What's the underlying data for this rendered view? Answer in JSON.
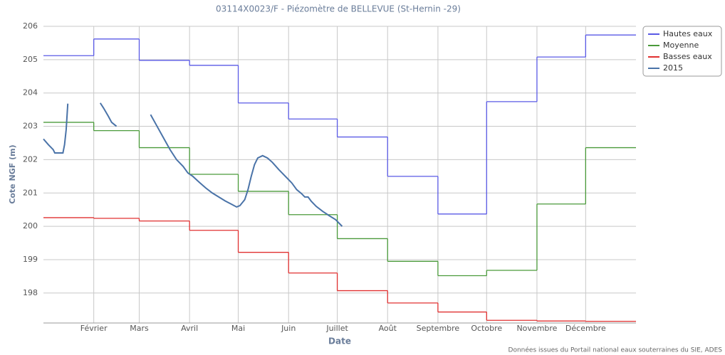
{
  "chart_data": {
    "type": "line",
    "title": "03114X0023/F - Piézomètre de BELLEVUE (St-Hernin -29)",
    "xlabel": "Date",
    "ylabel": "Cote NGF (m)",
    "credits": "Données issues du Portail national eaux souterraines du SIE, ADES",
    "xlim": [
      0,
      365
    ],
    "xticks": [
      {
        "value": 31,
        "label": "Février"
      },
      {
        "value": 59,
        "label": "Mars"
      },
      {
        "value": 90,
        "label": "Avril"
      },
      {
        "value": 120,
        "label": "Mai"
      },
      {
        "value": 151,
        "label": "Juin"
      },
      {
        "value": 181,
        "label": "Juillet"
      },
      {
        "value": 212,
        "label": "Août"
      },
      {
        "value": 243,
        "label": "Septembre"
      },
      {
        "value": 273,
        "label": "Octobre"
      },
      {
        "value": 304,
        "label": "Novembre"
      },
      {
        "value": 334,
        "label": "Décembre"
      }
    ],
    "ylim": [
      197.1,
      206
    ],
    "yticks": [
      198,
      199,
      200,
      201,
      202,
      203,
      204,
      205,
      206
    ],
    "grid": true,
    "legend": "top-right",
    "step_series": [
      {
        "name": "Hautes eaux",
        "color": "#5a5ae6",
        "values": [
          205.12,
          205.62,
          204.98,
          204.83,
          203.7,
          203.22,
          202.68,
          201.5,
          200.37,
          203.74,
          205.08,
          205.74
        ]
      },
      {
        "name": "Moyenne",
        "color": "#4a9a3a",
        "values": [
          203.12,
          202.87,
          202.36,
          201.56,
          201.05,
          200.35,
          199.63,
          198.95,
          198.52,
          198.68,
          200.67,
          202.36
        ]
      },
      {
        "name": "Basses eaux",
        "color": "#e03030",
        "values": [
          200.26,
          200.24,
          200.16,
          199.88,
          199.22,
          198.6,
          198.07,
          197.7,
          197.43,
          197.18,
          197.16,
          197.15
        ]
      }
    ],
    "series": [
      {
        "name": "2015",
        "color": "#4a73a8",
        "x": [
          0,
          3,
          6,
          7,
          12,
          13,
          14,
          15,
          null,
          35,
          37,
          40,
          42,
          45,
          null,
          66,
          70,
          74,
          78,
          82,
          86,
          89,
          92,
          96,
          100,
          104,
          108,
          112,
          116,
          119,
          121,
          124,
          126,
          128,
          130,
          132,
          135,
          138,
          141,
          145,
          149,
          153,
          156,
          159,
          161,
          163,
          165,
          168,
          172,
          176,
          180,
          184
        ],
        "values": [
          202.62,
          202.45,
          202.3,
          202.2,
          202.2,
          202.45,
          202.9,
          203.68,
          null,
          203.7,
          203.55,
          203.3,
          203.12,
          203.0,
          null,
          203.35,
          203.0,
          202.65,
          202.3,
          202.0,
          201.8,
          201.6,
          201.5,
          201.32,
          201.15,
          201.0,
          200.88,
          200.76,
          200.66,
          200.58,
          200.62,
          200.8,
          201.1,
          201.5,
          201.85,
          202.05,
          202.12,
          202.05,
          201.92,
          201.7,
          201.5,
          201.3,
          201.1,
          200.98,
          200.88,
          200.88,
          200.75,
          200.6,
          200.45,
          200.32,
          200.2,
          200.0
        ]
      }
    ]
  }
}
